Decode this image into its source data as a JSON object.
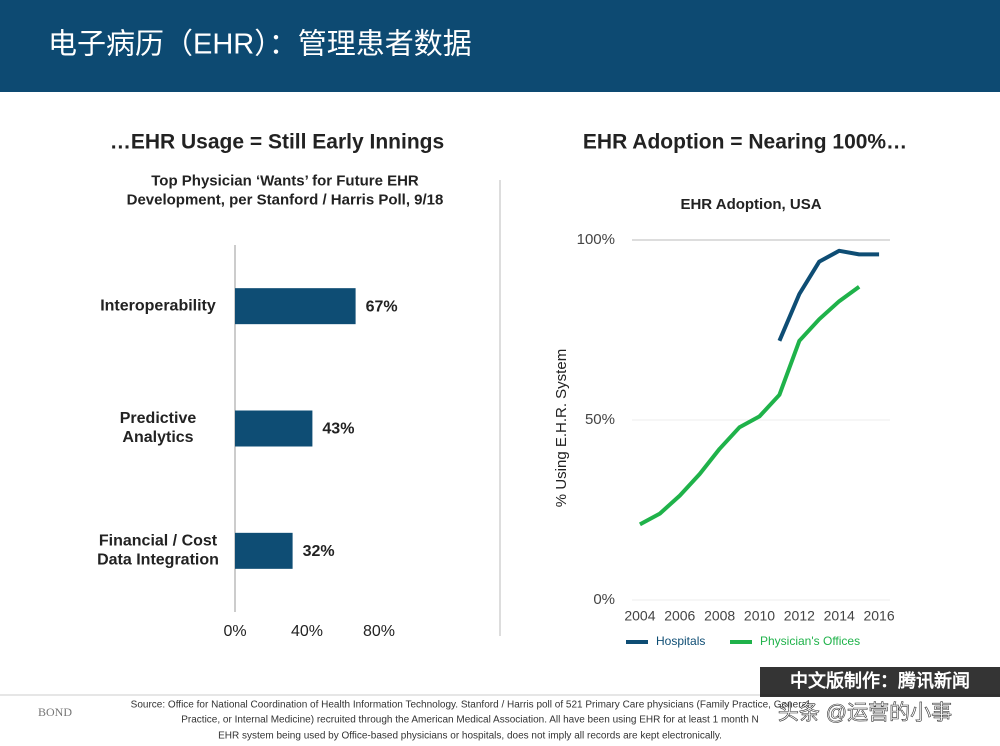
{
  "header": {
    "title": "电子病历（EHR）：管理患者数据"
  },
  "chart_data": [
    {
      "type": "hbar",
      "heading": "…EHR Usage = Still Early Innings",
      "title": "Top Physician ‘Wants’ for Future EHR\nDevelopment, per Stanford / Harris Poll, 9/18",
      "categories": [
        "Interoperability",
        "Predictive\nAnalytics",
        "Financial / Cost\nData Integration"
      ],
      "values": [
        67,
        43,
        32
      ],
      "value_labels": [
        "67%",
        "43%",
        "32%"
      ],
      "color": "#0e4d74",
      "xlim": [
        0,
        80
      ],
      "xticks": [
        {
          "value": 0,
          "label": "0%"
        },
        {
          "value": 40,
          "label": "40%"
        },
        {
          "value": 80,
          "label": "80%"
        }
      ]
    },
    {
      "type": "line",
      "heading": "EHR Adoption = Nearing 100%…",
      "title": "EHR Adoption, USA",
      "y_label": "% Using E.H.R. System",
      "x": [
        2004,
        2005,
        2006,
        2007,
        2008,
        2009,
        2010,
        2011,
        2012,
        2013,
        2014,
        2015,
        2016
      ],
      "series": [
        {
          "name": "Hospitals",
          "color": "#0e4d74",
          "values": [
            null,
            null,
            null,
            null,
            null,
            null,
            null,
            72,
            85,
            94,
            97,
            96,
            96
          ]
        },
        {
          "name": "Physician's Offices",
          "color": "#1fb24a",
          "values": [
            21,
            24,
            29,
            35,
            42,
            48,
            51,
            57,
            72,
            78,
            83,
            87,
            null
          ]
        }
      ],
      "xlim": [
        2003,
        2017
      ],
      "xticks": [
        2004,
        2006,
        2008,
        2010,
        2012,
        2014,
        2016
      ],
      "ylim": [
        0,
        100
      ],
      "yticks": [
        {
          "value": 0,
          "label": "0%"
        },
        {
          "value": 50,
          "label": "50%"
        },
        {
          "value": 100,
          "label": "100%"
        }
      ],
      "grid": true,
      "legend": "bottom"
    }
  ],
  "footer": {
    "logo": "BOND",
    "source": [
      "Source: Office for National Coordination of Health Information Technology. Stanford / Harris poll of 521 Primary Care physicians (Family Practice, General",
      "Practice, or Internal Medicine) recruited through the American Medical Association.  All have been using EHR for at least 1 month N",
      "EHR system being used by Office-based physicians or hospitals, does not imply all records are kept electronically."
    ],
    "badge": "中文版制作：腾讯新闻",
    "watermark": "头条 @运营的小事"
  }
}
